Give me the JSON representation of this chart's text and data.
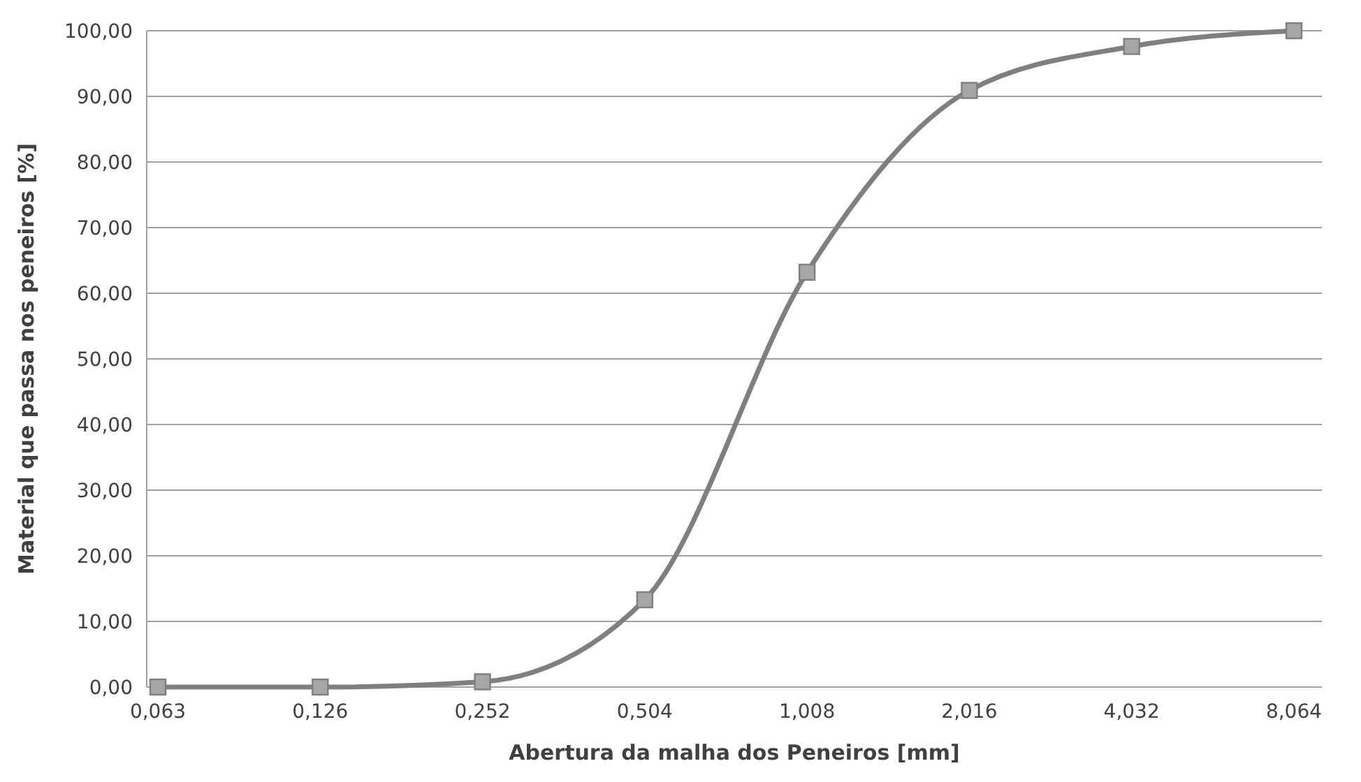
{
  "chart_data": {
    "type": "line",
    "xlabel": "Abertura da malha dos Peneiros [mm]",
    "ylabel": "Material que passa nos peneiros [%]",
    "categories": [
      "0,063",
      "0,126",
      "0,252",
      "0,504",
      "1,008",
      "2,016",
      "4,032",
      "8,064"
    ],
    "series": [
      {
        "color": "#7f7f7f",
        "values": [
          0,
          0,
          0.8,
          13.3,
          63.2,
          90.9,
          97.6,
          100
        ]
      }
    ],
    "ylim": [
      0,
      100
    ],
    "yticks": [
      {
        "value": 0,
        "label": "0,00"
      },
      {
        "value": 10,
        "label": "10,00"
      },
      {
        "value": 20,
        "label": "20,00"
      },
      {
        "value": 30,
        "label": "30,00"
      },
      {
        "value": 40,
        "label": "40,00"
      },
      {
        "value": 50,
        "label": "50,00"
      },
      {
        "value": 60,
        "label": "60,00"
      },
      {
        "value": 70,
        "label": "70,00"
      },
      {
        "value": 80,
        "label": "80,00"
      },
      {
        "value": 90,
        "label": "90,00"
      },
      {
        "value": 100,
        "label": "100,00"
      }
    ],
    "grid": "y",
    "marker": "square"
  }
}
